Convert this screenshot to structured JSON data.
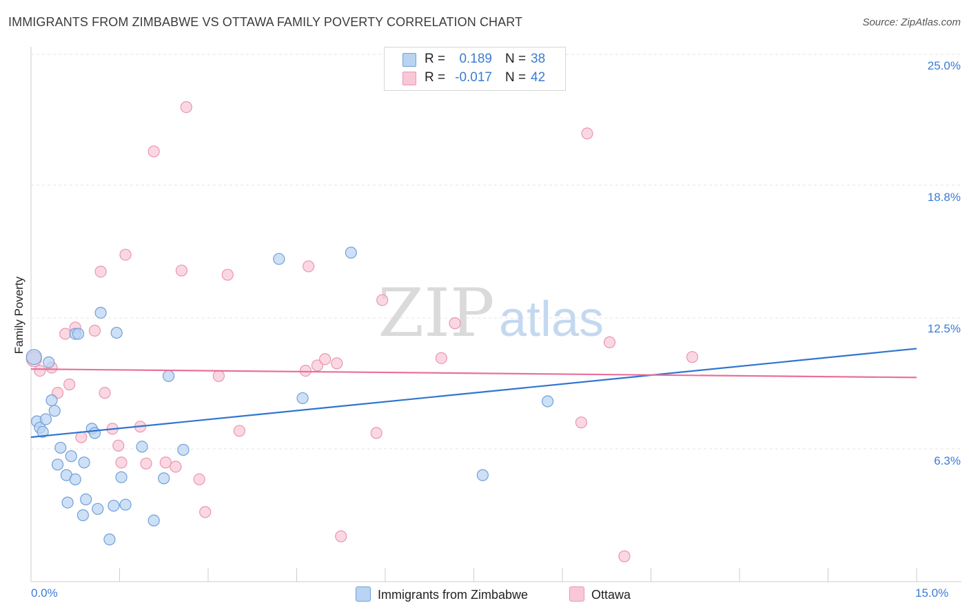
{
  "title": "IMMIGRANTS FROM ZIMBABWE VS OTTAWA FAMILY POVERTY CORRELATION CHART",
  "source": "Source: ZipAtlas.com",
  "watermark": {
    "zip": "ZIP",
    "atlas": "atlas"
  },
  "colors": {
    "blue_fill": "#b9d3f2",
    "blue_stroke": "#6f9fd8",
    "blue_line": "#2f74d0",
    "pink_fill": "#f8c8d6",
    "pink_stroke": "#ec94b0",
    "pink_line": "#e8709a",
    "tick_text": "#3a7bd5",
    "grid": "#e3e3e3"
  },
  "legend": {
    "rows": [
      {
        "r_label": "R =",
        "r_value": "0.189",
        "n_label": "N =",
        "n_value": "38"
      },
      {
        "r_label": "R =",
        "r_value": "-0.017",
        "n_label": "N =",
        "n_value": "42"
      }
    ]
  },
  "bottom_legend": {
    "series1": "Immigrants from Zimbabwe",
    "series2": "Ottawa"
  },
  "chart_data": {
    "type": "scatter",
    "title": "IMMIGRANTS FROM ZIMBABWE VS OTTAWA FAMILY POVERTY CORRELATION CHART",
    "xlabel": "",
    "ylabel": "Family Poverty",
    "xlim": [
      0,
      15
    ],
    "ylim": [
      0,
      25.8
    ],
    "x_tick_labels": [
      "0.0%",
      "15.0%"
    ],
    "y_ticks": [
      {
        "value": 25.0,
        "label": "25.0%"
      },
      {
        "value": 18.8,
        "label": "18.8%"
      },
      {
        "value": 12.5,
        "label": "12.5%"
      },
      {
        "value": 6.3,
        "label": "6.3%"
      }
    ],
    "series": [
      {
        "name": "Immigrants from Zimbabwe",
        "r": 0.189,
        "n": 38,
        "trend": {
          "x": [
            0,
            15
          ],
          "y": [
            6.85,
            11.05
          ]
        },
        "points": [
          [
            0.05,
            10.65
          ],
          [
            0.1,
            7.6
          ],
          [
            0.15,
            7.3
          ],
          [
            0.2,
            7.1
          ],
          [
            0.25,
            7.7
          ],
          [
            0.3,
            10.4
          ],
          [
            0.35,
            8.6
          ],
          [
            0.4,
            8.1
          ],
          [
            0.45,
            5.55
          ],
          [
            0.5,
            6.35
          ],
          [
            0.6,
            5.05
          ],
          [
            0.62,
            3.75
          ],
          [
            0.68,
            5.95
          ],
          [
            0.75,
            4.85
          ],
          [
            0.75,
            11.75
          ],
          [
            0.8,
            11.75
          ],
          [
            0.88,
            3.15
          ],
          [
            0.9,
            5.65
          ],
          [
            0.93,
            3.9
          ],
          [
            1.03,
            7.25
          ],
          [
            1.08,
            7.05
          ],
          [
            1.13,
            3.45
          ],
          [
            1.18,
            12.75
          ],
          [
            1.33,
            2.0
          ],
          [
            1.4,
            3.6
          ],
          [
            1.45,
            11.8
          ],
          [
            1.53,
            4.95
          ],
          [
            1.6,
            3.65
          ],
          [
            1.88,
            6.4
          ],
          [
            2.08,
            2.9
          ],
          [
            2.25,
            4.9
          ],
          [
            2.33,
            9.75
          ],
          [
            2.58,
            6.25
          ],
          [
            4.2,
            15.3
          ],
          [
            4.6,
            8.7
          ],
          [
            5.42,
            15.6
          ],
          [
            7.65,
            5.05
          ],
          [
            8.75,
            8.55
          ]
        ]
      },
      {
        "name": "Ottawa",
        "r": -0.017,
        "n": 42,
        "trend": {
          "x": [
            0,
            15
          ],
          "y": [
            10.08,
            9.68
          ]
        },
        "points": [
          [
            0.05,
            10.55
          ],
          [
            0.15,
            10.0
          ],
          [
            0.35,
            10.15
          ],
          [
            0.45,
            8.95
          ],
          [
            0.58,
            11.75
          ],
          [
            0.65,
            9.35
          ],
          [
            0.75,
            12.05
          ],
          [
            0.85,
            6.85
          ],
          [
            1.08,
            11.9
          ],
          [
            1.18,
            14.7
          ],
          [
            1.25,
            8.95
          ],
          [
            1.38,
            7.25
          ],
          [
            1.48,
            6.45
          ],
          [
            1.53,
            5.65
          ],
          [
            1.6,
            15.5
          ],
          [
            1.85,
            7.35
          ],
          [
            1.95,
            5.6
          ],
          [
            2.08,
            20.4
          ],
          [
            2.28,
            5.65
          ],
          [
            2.45,
            5.45
          ],
          [
            2.55,
            14.75
          ],
          [
            2.63,
            22.5
          ],
          [
            2.85,
            4.85
          ],
          [
            2.95,
            3.3
          ],
          [
            3.18,
            9.75
          ],
          [
            3.33,
            14.55
          ],
          [
            3.53,
            7.15
          ],
          [
            4.65,
            10.0
          ],
          [
            4.7,
            14.95
          ],
          [
            4.85,
            10.25
          ],
          [
            4.98,
            10.55
          ],
          [
            5.18,
            10.35
          ],
          [
            5.25,
            2.15
          ],
          [
            5.85,
            7.05
          ],
          [
            5.95,
            13.35
          ],
          [
            6.95,
            10.6
          ],
          [
            7.18,
            12.25
          ],
          [
            9.32,
            7.55
          ],
          [
            9.42,
            21.25
          ],
          [
            9.8,
            11.35
          ],
          [
            10.05,
            1.2
          ],
          [
            11.2,
            10.65
          ]
        ]
      }
    ]
  }
}
